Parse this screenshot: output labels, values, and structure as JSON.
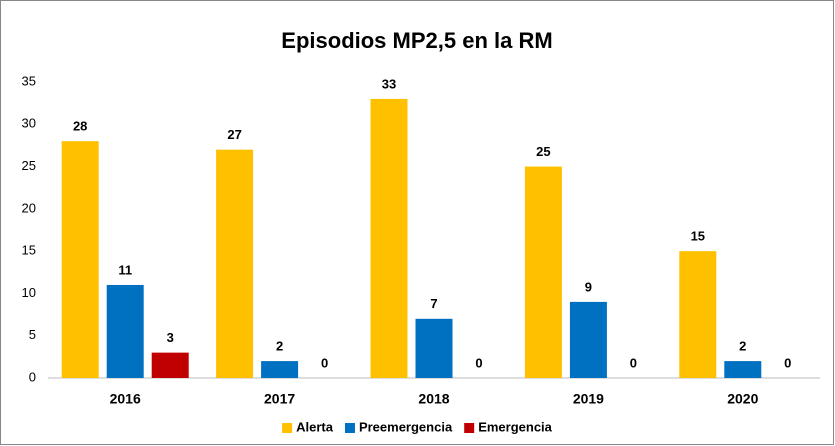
{
  "chart_data": {
    "type": "bar",
    "title": "Episodios MP2,5 en la RM",
    "categories": [
      "2016",
      "2017",
      "2018",
      "2019",
      "2020"
    ],
    "series": [
      {
        "name": "Alerta",
        "color": "#FFC000",
        "values": [
          28,
          27,
          33,
          25,
          15
        ]
      },
      {
        "name": "Preemergencia",
        "color": "#0070C0",
        "values": [
          11,
          2,
          7,
          9,
          2
        ]
      },
      {
        "name": "Emergencia",
        "color": "#C00000",
        "values": [
          3,
          0,
          0,
          0,
          0
        ]
      }
    ],
    "ylim": [
      0,
      35
    ],
    "yticks": [
      0,
      5,
      10,
      15,
      20,
      25,
      30,
      35
    ],
    "grid": false,
    "legend": "bottom"
  }
}
